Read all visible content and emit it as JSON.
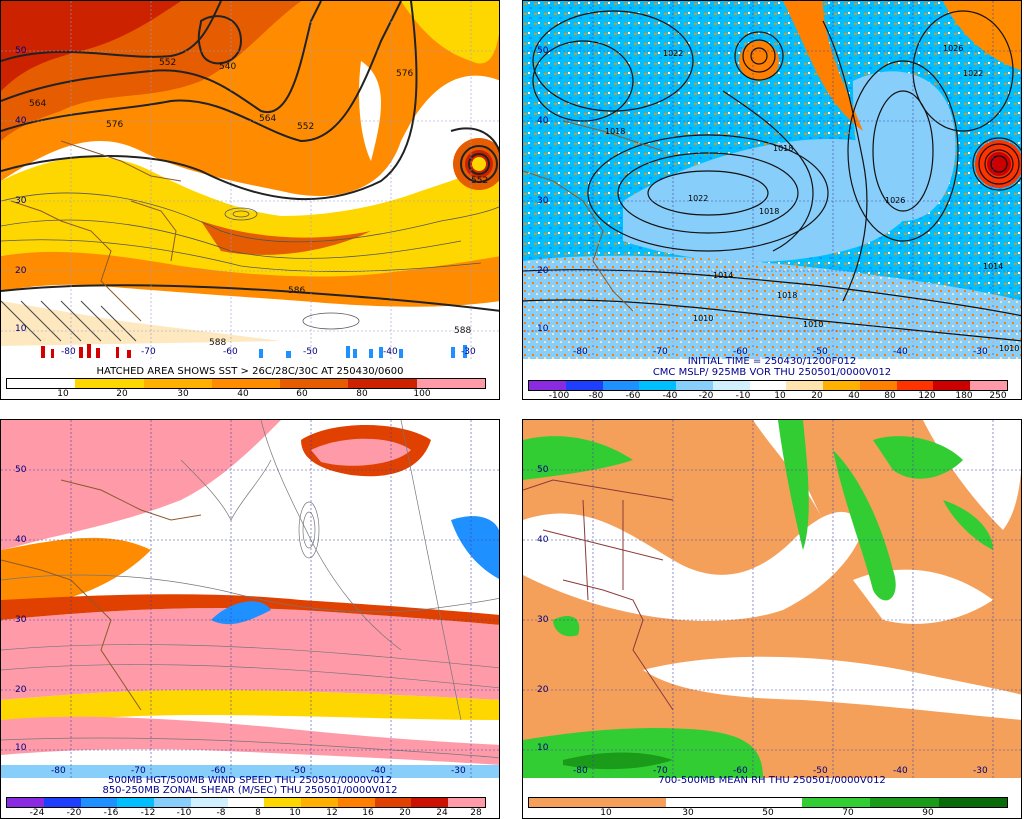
{
  "panels": {
    "p1": {
      "caption": "HATCHED AREA SHOWS SST > 26C/28C/30C AT 250430/0600",
      "ticks": [
        "10",
        "20",
        "30",
        "40",
        "60",
        "80",
        "100"
      ],
      "colors": [
        "#ffffff",
        "#ffd700",
        "#ffb000",
        "#ff8c00",
        "#e65c00",
        "#cc2200",
        "#ff9aa8"
      ],
      "contours": [
        "552",
        "540",
        "564",
        "576",
        "552",
        "564",
        "576",
        "552",
        "586",
        "588",
        "588"
      ],
      "lats": [
        "50",
        "40",
        "30",
        "20",
        "10"
      ],
      "lons": [
        "-80",
        "-70",
        "-60",
        "-50",
        "-40",
        "-30"
      ]
    },
    "p2": {
      "caption1": "INITIAL TIME = 250430/1200F012",
      "caption2": "CMC MSLP/ 925MB VOR THU 250501/0000V012",
      "ticks": [
        "-100",
        "-80",
        "-60",
        "-40",
        "-20",
        "-10",
        "10",
        "20",
        "40",
        "80",
        "120",
        "180",
        "250"
      ],
      "colors": [
        "#8a2be2",
        "#1f3fff",
        "#1e90ff",
        "#00bfff",
        "#87cefa",
        "#d0efff",
        "#ffffff",
        "#ffe4b0",
        "#ffb000",
        "#ff7f00",
        "#ff3300",
        "#cc0000",
        "#ff9aa8"
      ],
      "contours": [
        "1022",
        "1026",
        "1022",
        "1018",
        "1018",
        "1022",
        "1026",
        "1018",
        "1014",
        "1018",
        "1014",
        "1010",
        "1010",
        "1010"
      ],
      "lats": [
        "50",
        "40",
        "30",
        "20",
        "10"
      ],
      "lons": [
        "-80",
        "-70",
        "-60",
        "-50",
        "-40",
        "-30"
      ]
    },
    "p3": {
      "caption1": "500MB HGT/500MB WIND SPEED THU 250501/0000V012",
      "caption2": "850-250MB ZONAL SHEAR (M/SEC) THU 250501/0000V012",
      "ticks": [
        "-24",
        "-20",
        "-16",
        "-12",
        "-10",
        "-8",
        "8",
        "10",
        "12",
        "16",
        "20",
        "24",
        "28"
      ],
      "colors": [
        "#8a2be2",
        "#1f3fff",
        "#1e90ff",
        "#00bfff",
        "#87cefa",
        "#d0efff",
        "#ffffff",
        "#ffd700",
        "#ffb000",
        "#ff7f00",
        "#e04000",
        "#cc1100",
        "#ff9aa8"
      ],
      "lats": [
        "50",
        "40",
        "30",
        "20",
        "10"
      ],
      "lons": [
        "-80",
        "-70",
        "-60",
        "-50",
        "-40",
        "-30"
      ]
    },
    "p4": {
      "caption": "700-500MB MEAN RH THU 250501/0000V012",
      "ticks": [
        "10",
        "30",
        "50",
        "70",
        "90"
      ],
      "colors": [
        "#f5a05a",
        "#f5a05a",
        "#ffffff",
        "#ffffff",
        "#32cd32",
        "#1a9b1a",
        "#0a6b0a"
      ],
      "lats": [
        "50",
        "40",
        "30",
        "20",
        "10"
      ],
      "lons": [
        "-80",
        "-70",
        "-60",
        "-50",
        "-40",
        "-30"
      ]
    }
  }
}
